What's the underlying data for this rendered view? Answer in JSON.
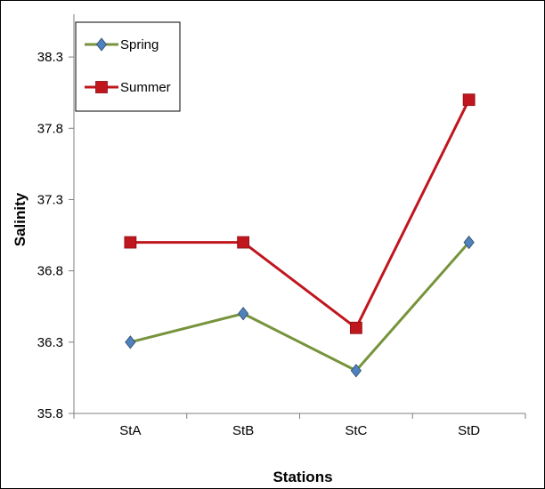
{
  "chart_data": {
    "type": "line",
    "title": "",
    "xlabel": "Stations",
    "ylabel": "Salinity",
    "categories": [
      "StA",
      "StB",
      "StC",
      "StD"
    ],
    "ylim": [
      35.8,
      38.6
    ],
    "yticks": [
      "35.8",
      "36.3",
      "36.8",
      "37.3",
      "37.8",
      "38.3"
    ],
    "ytick_values": [
      35.8,
      36.3,
      36.8,
      37.3,
      37.8,
      38.3
    ],
    "grid": false,
    "legend_position": "top-left",
    "series": [
      {
        "name": "Spring",
        "values": [
          36.3,
          36.5,
          36.1,
          37.0
        ],
        "color": "#77933c",
        "marker": "diamond",
        "marker_color": "#4f81bd"
      },
      {
        "name": "Summer",
        "values": [
          37.0,
          37.0,
          36.4,
          38.0
        ],
        "color": "#c0161e",
        "marker": "square",
        "marker_color": "#c0161e"
      }
    ]
  }
}
